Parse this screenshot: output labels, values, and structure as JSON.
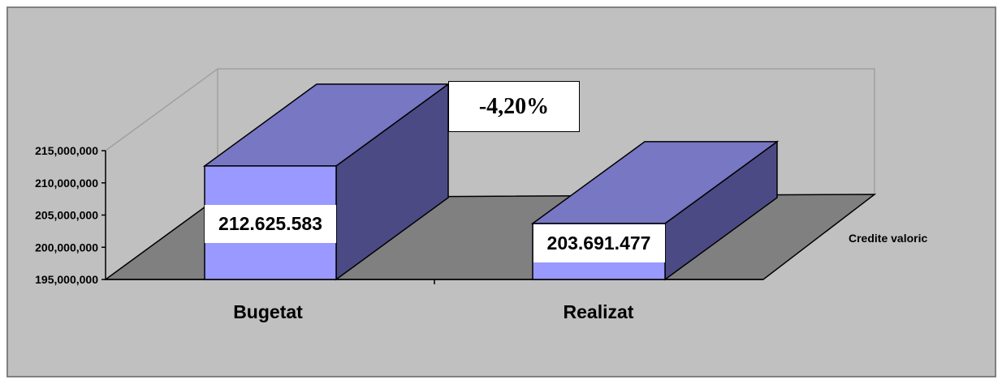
{
  "colors": {
    "background": "#c0c0c0",
    "floor": "#808080",
    "bar_front": "#9999ff",
    "bar_top": "#7777c4",
    "bar_side": "#4c4a85",
    "outline": "#000000",
    "label_bg": "#ffffff"
  },
  "chart_data": {
    "type": "bar",
    "style": "3d-column",
    "categories": [
      "Bugetat",
      "Realizat"
    ],
    "series": [
      {
        "name": "Credite valoric",
        "values": [
          212625583,
          203691477
        ]
      }
    ],
    "data_labels": [
      "212.625.583",
      "203.691.477"
    ],
    "y_ticks": [
      "195,000,000",
      "200,000,000",
      "205,000,000",
      "210,000,000",
      "215,000,000"
    ],
    "ylim": [
      195000000,
      215000000
    ],
    "annotation": "-4,20%",
    "legend_position": "right",
    "grid": false
  }
}
